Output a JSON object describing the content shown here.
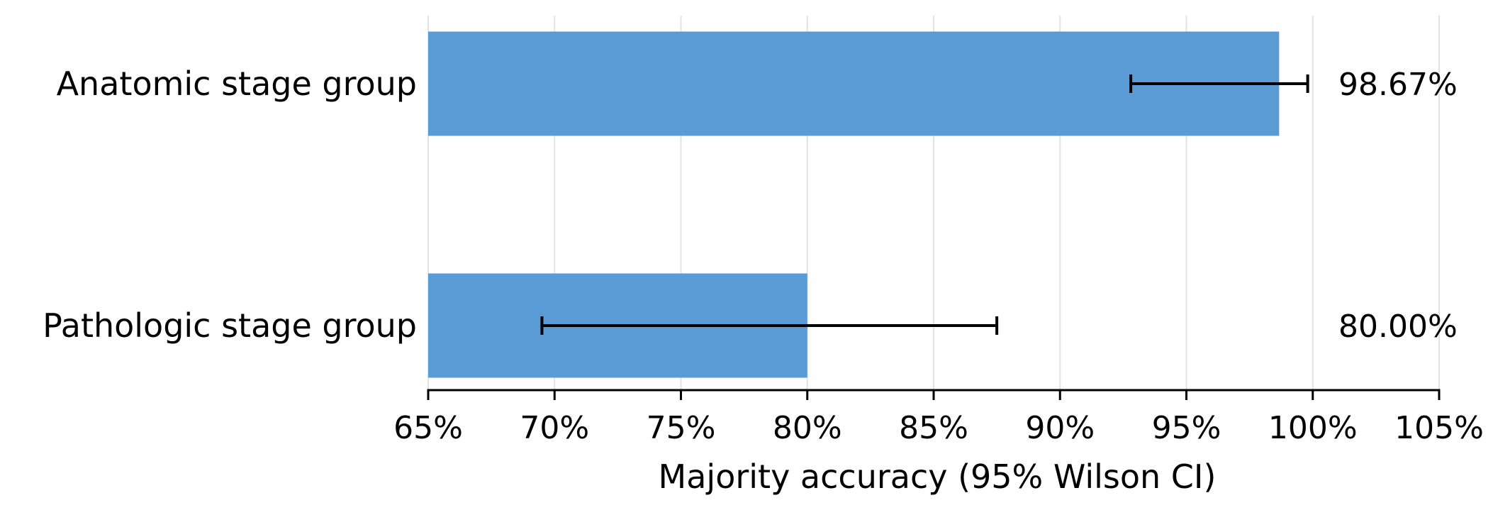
{
  "chart_data": {
    "type": "bar",
    "orientation": "horizontal",
    "categories": [
      "Anatomic stage group",
      "Pathologic stage group"
    ],
    "values": [
      98.67,
      80.0
    ],
    "ci_low": [
      92.8,
      69.5
    ],
    "ci_high": [
      99.8,
      87.5
    ],
    "value_labels": [
      "98.67%",
      "80.00%"
    ],
    "xlabel": "Majority accuracy (95% Wilson CI)",
    "xlim": [
      65,
      105
    ],
    "xticks": [
      65,
      70,
      75,
      80,
      85,
      90,
      95,
      100,
      105
    ],
    "xtick_labels": [
      "65%",
      "70%",
      "75%",
      "80%",
      "85%",
      "90%",
      "95%",
      "100%",
      "105%"
    ],
    "grid": "vertical",
    "bar_color": "#5b9bd5",
    "errorbar_color": "#000000"
  }
}
